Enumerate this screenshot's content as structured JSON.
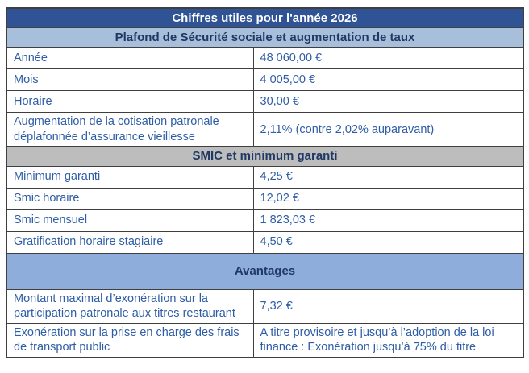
{
  "table": {
    "title": "Chiffres utiles pour l'année 2026",
    "sections": [
      {
        "id": "plafond",
        "header": "Plafond de Sécurité sociale et augmentation de taux",
        "header_bg": "#a7bfda",
        "rows": [
          {
            "label": "Année",
            "value": "48 060,00 €"
          },
          {
            "label": "Mois",
            "value": "4 005,00 €"
          },
          {
            "label": "Horaire",
            "value": "30,00 €"
          },
          {
            "label": "Augmentation de la cotisation patronale déplafonnée d’assurance vieillesse",
            "value": "2,11% (contre 2,02% auparavant)"
          }
        ]
      },
      {
        "id": "smic",
        "header": "SMIC et minimum garanti",
        "header_bg": "#bdbdbd",
        "rows": [
          {
            "label": "Minimum garanti",
            "value": "4,25 €"
          },
          {
            "label": "Smic horaire",
            "value": "12,02 €"
          },
          {
            "label": "Smic mensuel",
            "value": "1 823,03 €"
          },
          {
            "label": "Gratification horaire stagiaire",
            "value": "4,50 €"
          }
        ]
      },
      {
        "id": "avantages",
        "header": "Avantages",
        "header_bg": "#8eaddb",
        "rows": [
          {
            "label": "Montant maximal d’exonération sur la participation patronale aux titres restaurant",
            "value": "7,32 €"
          },
          {
            "label": "Exonération sur la prise en charge des frais de transport public",
            "value": "A titre provisoire et jusqu’à l’adoption de la loi finance : Exonération jusqu’à 75% du titre"
          }
        ]
      }
    ],
    "colors": {
      "title_bg": "#2f5394",
      "title_text": "#ffffff",
      "header_text": "#1f3864",
      "body_text": "#2e5da6",
      "border": "#3f3f3f"
    }
  }
}
